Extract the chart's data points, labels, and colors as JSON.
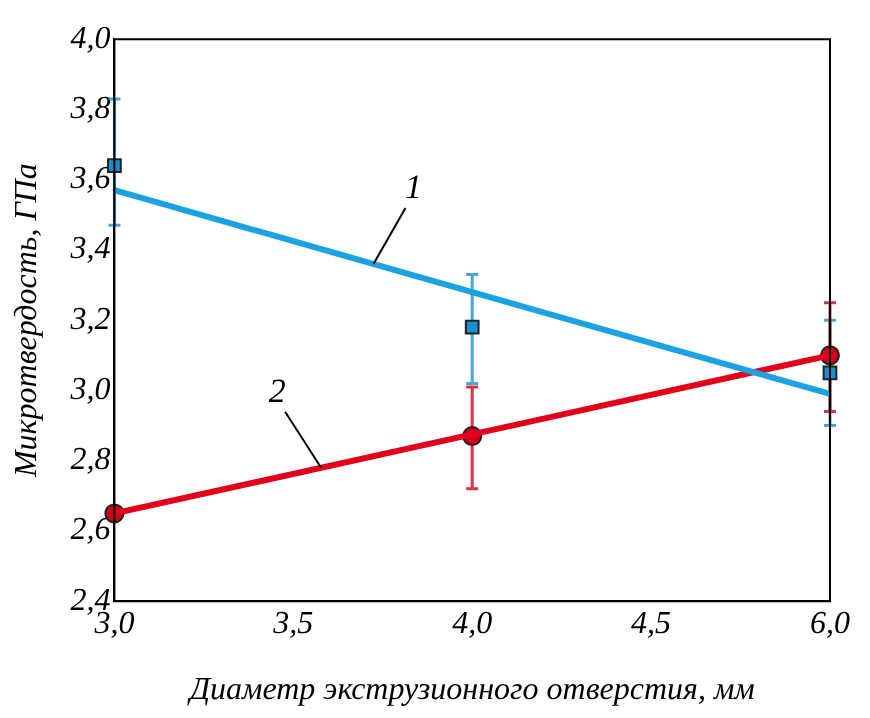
{
  "chart_data": {
    "type": "line",
    "xlabel": "Диаметр экструзионного отверстия, мм",
    "ylabel": "Микротвердость, ГПа",
    "categories": [
      "3,0",
      "3,5",
      "4,0",
      "4,5",
      "6,0"
    ],
    "ylim": [
      2.4,
      4.0
    ],
    "yticks": [
      {
        "value": 2.4,
        "label": "2,4"
      },
      {
        "value": 2.6,
        "label": "2,6"
      },
      {
        "value": 2.8,
        "label": "2,8"
      },
      {
        "value": 3.0,
        "label": "3,0"
      },
      {
        "value": 3.2,
        "label": "3,2"
      },
      {
        "value": 3.4,
        "label": "3,4"
      },
      {
        "value": 3.6,
        "label": "3,6"
      },
      {
        "value": 3.8,
        "label": "3,8"
      },
      {
        "value": 4.0,
        "label": "4,0"
      }
    ],
    "grid": false,
    "legend": false,
    "series": [
      {
        "color": "#1aa3e0",
        "marker": "none",
        "values": [
          3.57,
          null,
          null,
          null,
          2.99
        ]
      },
      {
        "type": "scatter",
        "color": "#1a8fd0",
        "marker": "square",
        "values": [
          3.64,
          null,
          3.18,
          null,
          3.05
        ],
        "errors": [
          [
            3.47,
            3.83
          ],
          null,
          [
            3.02,
            3.33
          ],
          null,
          [
            2.9,
            3.2
          ]
        ]
      },
      {
        "color": "#e3001b",
        "marker": "none",
        "values": [
          2.65,
          null,
          null,
          null,
          3.1
        ]
      },
      {
        "type": "scatter",
        "color": "#d0001a",
        "marker": "circle",
        "values": [
          2.65,
          null,
          2.87,
          null,
          3.1
        ],
        "errors": [
          null,
          null,
          [
            2.72,
            3.01
          ],
          null,
          [
            2.94,
            3.25
          ]
        ]
      }
    ],
    "annotations": [
      {
        "text": "1",
        "y": 3.36
      },
      {
        "text": "2",
        "y": 2.78
      }
    ]
  }
}
